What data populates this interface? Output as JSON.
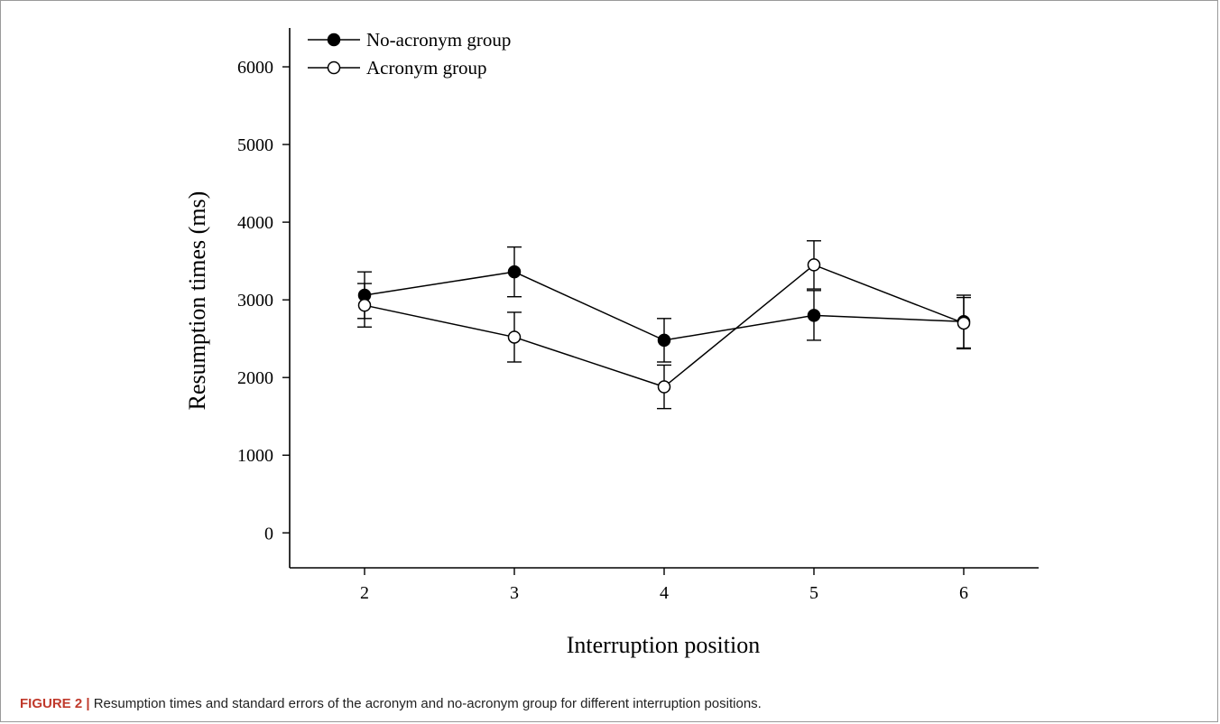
{
  "chart_data": {
    "type": "line",
    "title": "",
    "xlabel": "Interruption position",
    "ylabel": "Resumption times (ms)",
    "x": [
      2,
      3,
      4,
      5,
      6
    ],
    "x_ticks": [
      "2",
      "3",
      "4",
      "5",
      "6"
    ],
    "xlim": [
      1.5,
      6.5
    ],
    "ylim": [
      -450,
      6500
    ],
    "y_ticks": [
      "0",
      "1000",
      "2000",
      "3000",
      "4000",
      "5000",
      "6000"
    ],
    "grid": false,
    "legend_position": "top-left",
    "series": [
      {
        "name": "No-acronym group",
        "marker": "filled-circle",
        "values": [
          3060,
          3360,
          2480,
          2800,
          2720
        ],
        "error": [
          300,
          320,
          280,
          320,
          340
        ]
      },
      {
        "name": "Acronym group",
        "marker": "open-circle",
        "values": [
          2930,
          2520,
          1880,
          3450,
          2700
        ],
        "error": [
          280,
          320,
          280,
          310,
          330
        ]
      }
    ],
    "colors": {
      "line": "#000000",
      "open_marker_fill": "#ffffff"
    }
  },
  "caption": {
    "label": "FIGURE 2 |",
    "text": "Resumption times and standard errors of the acronym and no-acronym group for different interruption positions."
  }
}
